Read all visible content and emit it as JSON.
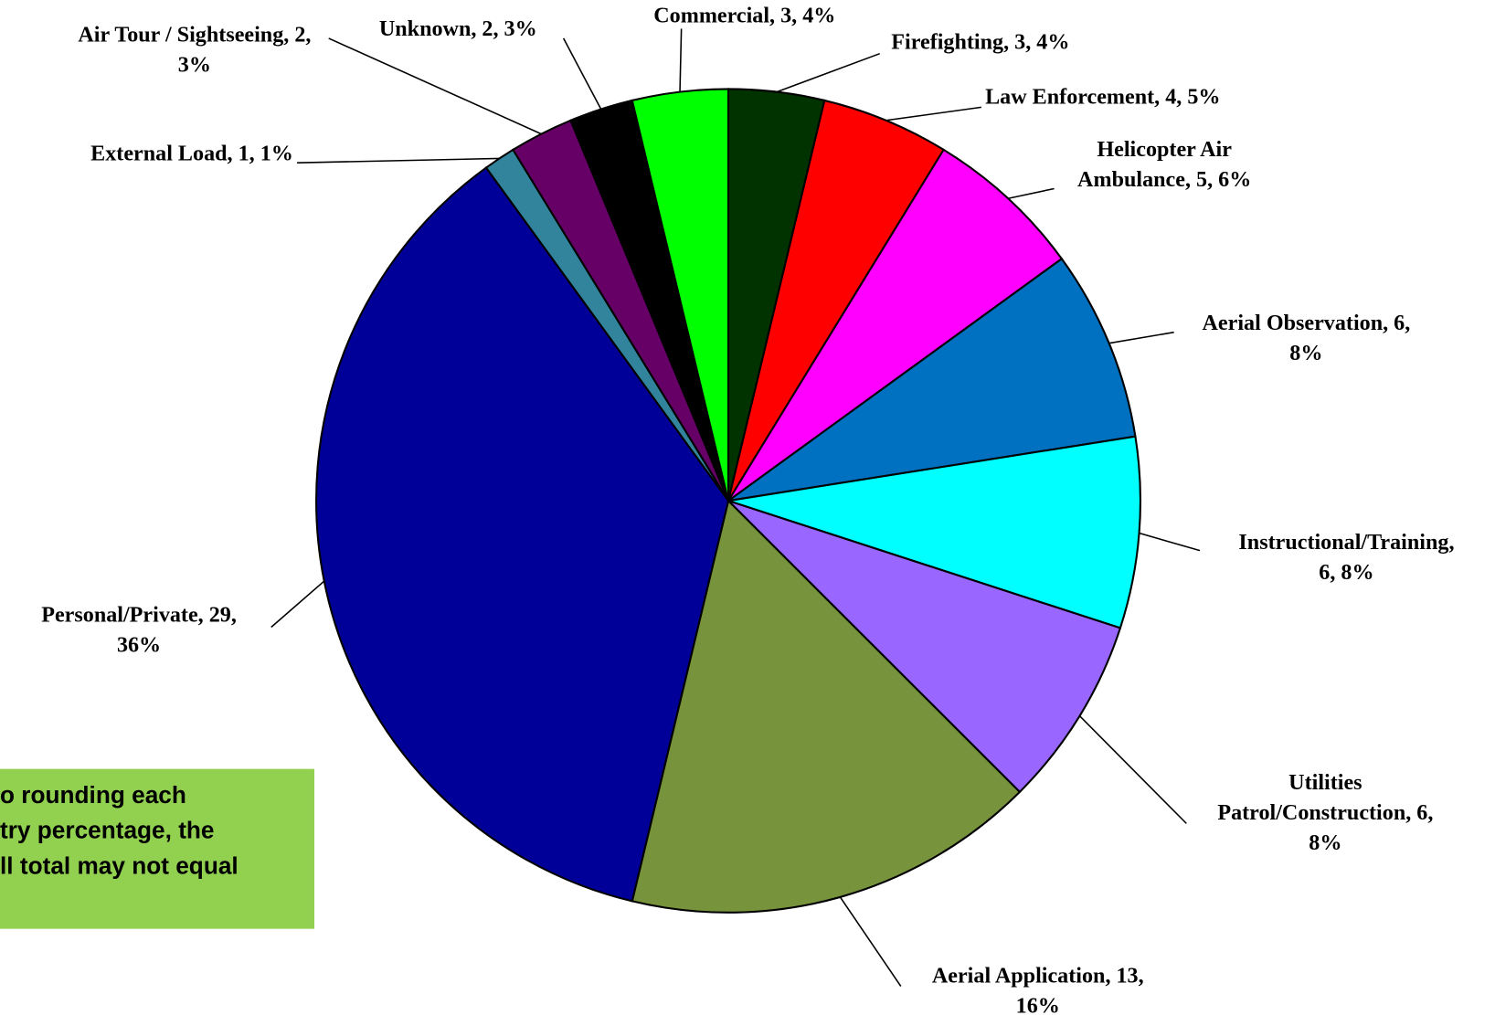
{
  "chart_data": {
    "type": "pie",
    "labels": [
      [
        "Firefighting, 3, 4%"
      ],
      [
        "Law Enforcement, 4, 5%"
      ],
      [
        "Helicopter Air",
        "Ambulance, 5, 6%"
      ],
      [
        "Aerial Observation, 6,",
        "8%"
      ],
      [
        "Instructional/Training,",
        "6, 8%"
      ],
      [
        "Utilities",
        "Patrol/Construction, 6,",
        "8%"
      ],
      [
        "Aerial Application, 13,",
        "16%"
      ],
      [
        "Personal/Private, 29,",
        "36%"
      ],
      [
        "External Load, 1, 1%"
      ],
      [
        "Air Tour / Sightseeing, 2,",
        "3%"
      ],
      [
        "Unknown, 2, 3%"
      ],
      [
        "Commercial, 3, 4%"
      ]
    ],
    "values": [
      3,
      4,
      5,
      6,
      6,
      6,
      13,
      29,
      1,
      2,
      2,
      3
    ],
    "colors": [
      "#003300",
      "#ff0000",
      "#ff00ff",
      "#0070c0",
      "#00ffff",
      "#9966ff",
      "#77933c",
      "#000099",
      "#31849b",
      "#660066",
      "#000000",
      "#00ff00"
    ],
    "note": [
      "o rounding each",
      "try percentage, the",
      "ll total may not equal"
    ]
  }
}
